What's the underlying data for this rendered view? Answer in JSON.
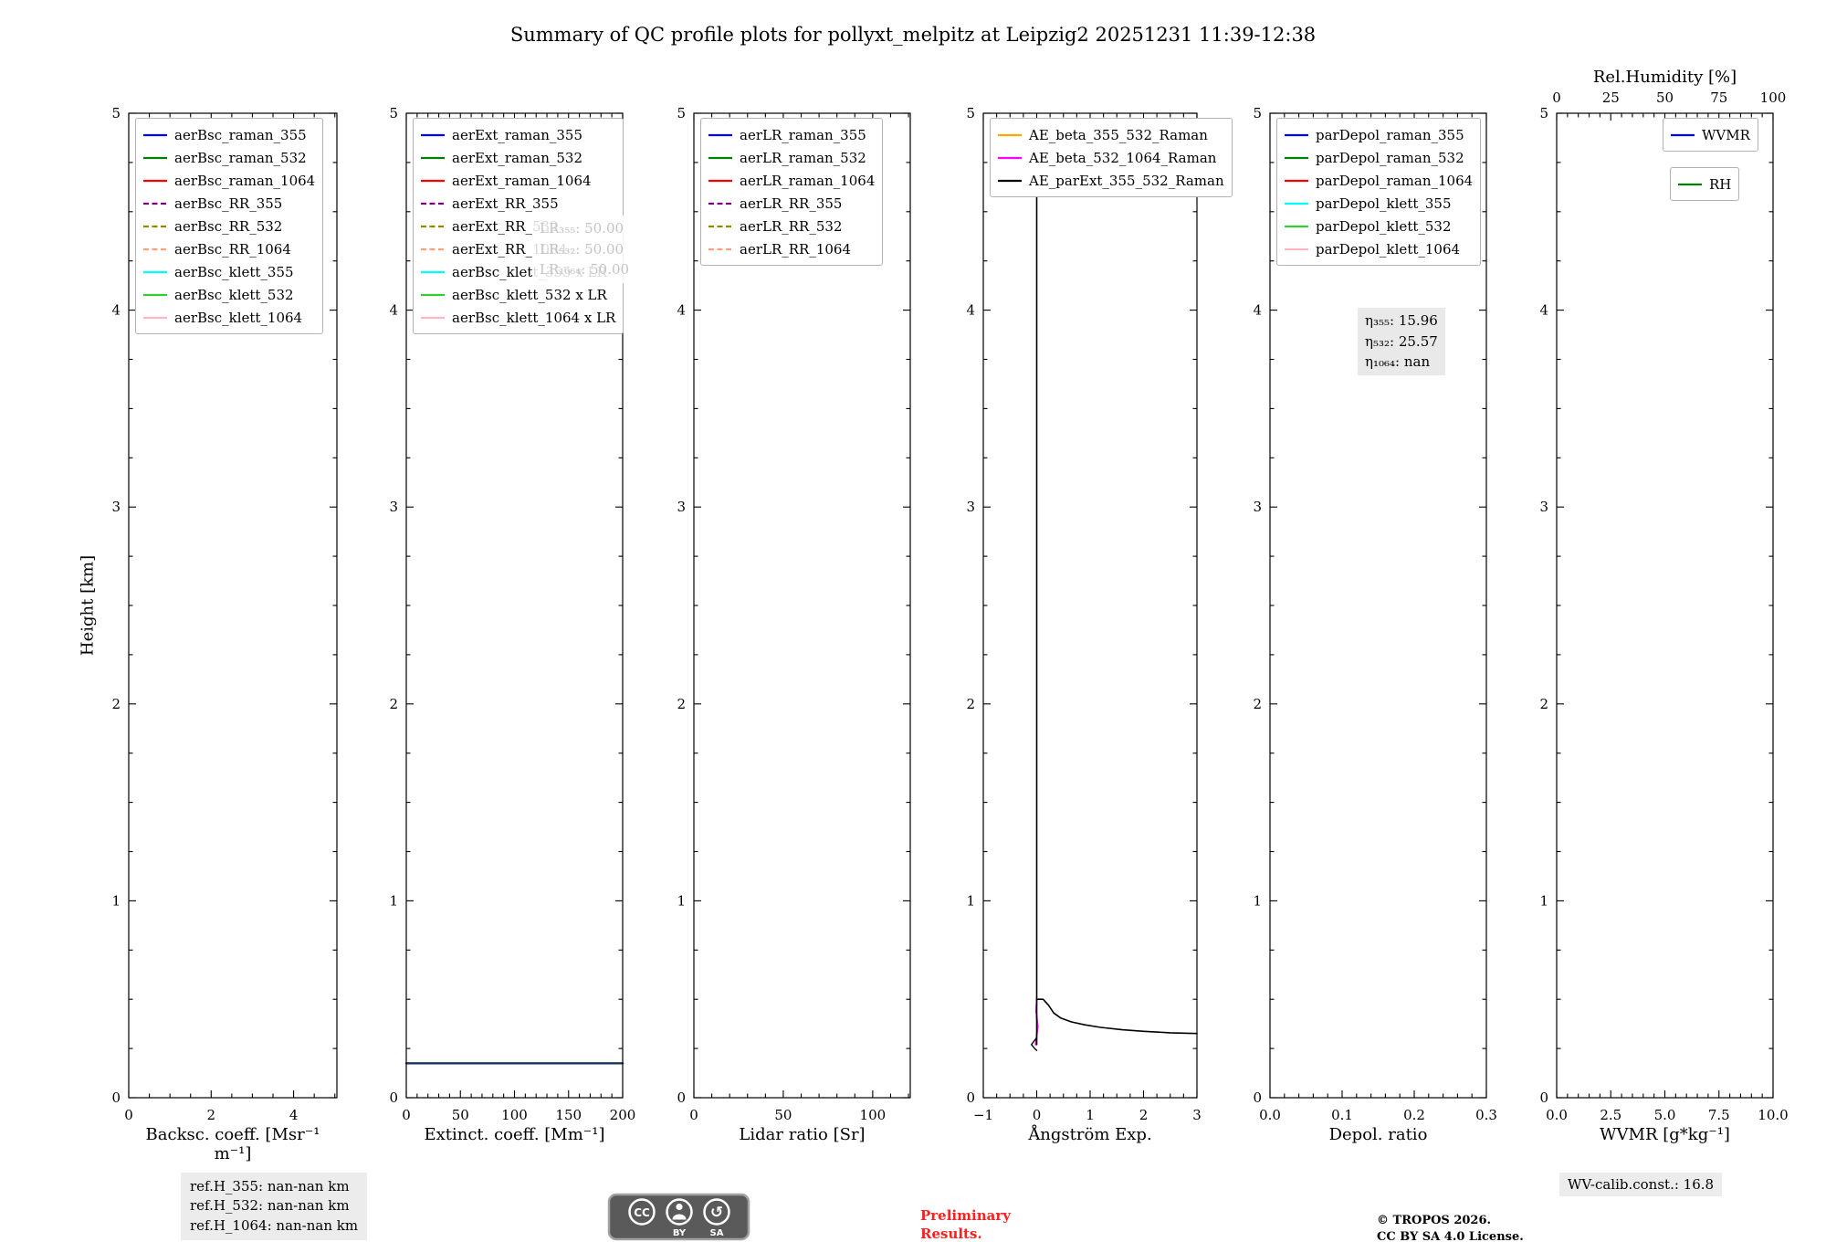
{
  "title": "Summary of QC profile plots for pollyxt_melpitz at Leipzig2 20251231 11:39-12:38",
  "ylabel": "Height [km]",
  "chart_data": [
    {
      "type": "line",
      "xlabel": "Backsc. coeff. [Msr⁻¹ m⁻¹]",
      "xlim": [
        0,
        5.05
      ],
      "xticks": [
        0,
        2,
        4
      ],
      "xtick_labels": [
        "0",
        "2",
        "4"
      ],
      "xminor": 0.5,
      "ylim": [
        0,
        5
      ],
      "yticks": [
        0,
        1,
        2,
        3,
        4,
        5
      ],
      "ytick_labels": [
        "0",
        "1",
        "2",
        "3",
        "4",
        "5"
      ],
      "yminor": 0.25,
      "legend": {
        "items": [
          {
            "label": "aerBsc_raman_355",
            "color": "#0000ff",
            "dash": "solid"
          },
          {
            "label": "aerBsc_raman_532",
            "color": "#008000",
            "dash": "solid"
          },
          {
            "label": "aerBsc_raman_1064",
            "color": "#ff0000",
            "dash": "solid"
          },
          {
            "label": "aerBsc_RR_355",
            "color": "#800080",
            "dash": "dashed"
          },
          {
            "label": "aerBsc_RR_532",
            "color": "#8b8b00",
            "dash": "dashed"
          },
          {
            "label": "aerBsc_RR_1064",
            "color": "#ffa07a",
            "dash": "dashed"
          },
          {
            "label": "aerBsc_klett_355",
            "color": "#00ffff",
            "dash": "solid"
          },
          {
            "label": "aerBsc_klett_532",
            "color": "#32cd32",
            "dash": "solid"
          },
          {
            "label": "aerBsc_klett_1064",
            "color": "#ffb6c1",
            "dash": "solid"
          }
        ]
      },
      "lines": []
    },
    {
      "type": "line",
      "xlabel": "Extinct. coeff. [Mm⁻¹]",
      "xlim": [
        0,
        200
      ],
      "xticks": [
        0,
        50,
        100,
        150,
        200
      ],
      "xtick_labels": [
        "0",
        "50",
        "100",
        "150",
        "200"
      ],
      "xminor": 10,
      "ylim": [
        0,
        5
      ],
      "yticks": [
        0,
        1,
        2,
        3,
        4,
        5
      ],
      "ytick_labels": [
        "0",
        "1",
        "2",
        "3",
        "4",
        "5"
      ],
      "yminor": 0.25,
      "legend": {
        "items": [
          {
            "label": "aerExt_raman_355",
            "color": "#0000ff",
            "dash": "solid"
          },
          {
            "label": "aerExt_raman_532",
            "color": "#008000",
            "dash": "solid"
          },
          {
            "label": "aerExt_raman_1064",
            "color": "#ff0000",
            "dash": "solid"
          },
          {
            "label": "aerExt_RR_355",
            "color": "#800080",
            "dash": "dashed"
          },
          {
            "label": "aerExt_RR_532",
            "color": "#8b8b00",
            "dash": "dashed"
          },
          {
            "label": "aerExt_RR_1064",
            "color": "#ffa07a",
            "dash": "dashed"
          },
          {
            "label": "aerBsc_klett_355 x LR",
            "color": "#00ffff",
            "dash": "solid"
          },
          {
            "label": "aerBsc_klett_532 x LR",
            "color": "#32cd32",
            "dash": "solid"
          },
          {
            "label": "aerBsc_klett_1064 x LR",
            "color": "#ffb6c1",
            "dash": "solid"
          }
        ]
      },
      "annotations": [
        {
          "name": "lidar-ratio-annotation",
          "lines": [
            "LR₃₅₅: 50.00",
            "LR₅₃₂: 50.00",
            "LR₁₀₆₄: 50.00"
          ],
          "color": "#c4c4c4",
          "bg": "rgba(255,255,255,0.85)"
        }
      ],
      "lines": [
        {
          "name": "extinction-profile-line",
          "color": "#16365c",
          "width": 2.4,
          "points": [
            [
              0,
              0.175
            ],
            [
              200,
              0.175
            ]
          ]
        }
      ]
    },
    {
      "type": "line",
      "xlabel": "Lidar ratio [Sr]",
      "xlim": [
        0,
        121
      ],
      "xticks": [
        0,
        50,
        100
      ],
      "xtick_labels": [
        "0",
        "50",
        "100"
      ],
      "xminor": 10,
      "ylim": [
        0,
        5
      ],
      "yticks": [
        0,
        1,
        2,
        3,
        4,
        5
      ],
      "ytick_labels": [
        "0",
        "1",
        "2",
        "3",
        "4",
        "5"
      ],
      "yminor": 0.25,
      "legend": {
        "items": [
          {
            "label": "aerLR_raman_355",
            "color": "#0000ff",
            "dash": "solid"
          },
          {
            "label": "aerLR_raman_532",
            "color": "#008000",
            "dash": "solid"
          },
          {
            "label": "aerLR_raman_1064",
            "color": "#ff0000",
            "dash": "solid"
          },
          {
            "label": "aerLR_RR_355",
            "color": "#800080",
            "dash": "dashed"
          },
          {
            "label": "aerLR_RR_532",
            "color": "#8b8b00",
            "dash": "dashed"
          },
          {
            "label": "aerLR_RR_1064",
            "color": "#ffa07a",
            "dash": "dashed"
          }
        ]
      },
      "lines": []
    },
    {
      "type": "line",
      "xlabel": "Ångström Exp.",
      "xlim": [
        -1,
        3
      ],
      "xticks": [
        -1,
        0,
        1,
        2,
        3
      ],
      "xtick_labels": [
        "−1",
        "0",
        "1",
        "2",
        "3"
      ],
      "xminor": 0.25,
      "ylim": [
        0,
        5
      ],
      "yticks": [
        0,
        1,
        2,
        3,
        4,
        5
      ],
      "ytick_labels": [
        "0",
        "1",
        "2",
        "3",
        "4",
        "5"
      ],
      "yminor": 0.25,
      "legend": {
        "items": [
          {
            "label": "AE_beta_355_532_Raman",
            "color": "#ffa500",
            "dash": "solid"
          },
          {
            "label": "AE_beta_532_1064_Raman",
            "color": "#ff00ff",
            "dash": "solid"
          },
          {
            "label": "AE_parExt_355_532_Raman",
            "color": "#000000",
            "dash": "solid"
          }
        ]
      },
      "lines": [
        {
          "name": "AE_beta_532_1064_Raman",
          "color": "#ff00ff",
          "width": 1.8,
          "points": [
            [
              -0.02,
              0.27
            ],
            [
              0.02,
              0.36
            ],
            [
              -0.01,
              0.44
            ],
            [
              0,
              0.5
            ]
          ]
        },
        {
          "name": "AE_parExt_355_532_Raman-vertical",
          "color": "#000000",
          "width": 1.6,
          "points": [
            [
              0,
              0.27
            ],
            [
              0,
              4.6
            ]
          ]
        },
        {
          "name": "AE_parExt_355_532_Raman-curve",
          "color": "#000000",
          "width": 1.6,
          "points": [
            [
              0,
              0.5
            ],
            [
              0.12,
              0.5
            ],
            [
              0.22,
              0.47
            ],
            [
              0.32,
              0.43
            ],
            [
              0.45,
              0.405
            ],
            [
              0.65,
              0.385
            ],
            [
              0.9,
              0.37
            ],
            [
              1.2,
              0.357
            ],
            [
              1.6,
              0.345
            ],
            [
              2.0,
              0.337
            ],
            [
              2.5,
              0.33
            ],
            [
              3.0,
              0.326
            ]
          ]
        },
        {
          "name": "AE_parExt_355_532_Raman-blip",
          "color": "#000000",
          "width": 1.4,
          "points": [
            [
              0,
              0.305
            ],
            [
              -0.1,
              0.27
            ],
            [
              -0.04,
              0.25
            ],
            [
              0,
              0.24
            ]
          ]
        }
      ]
    },
    {
      "type": "line",
      "xlabel": "Depol. ratio",
      "xlim": [
        0,
        0.3
      ],
      "xticks": [
        0,
        0.1,
        0.2,
        0.3
      ],
      "xtick_labels": [
        "0.0",
        "0.1",
        "0.2",
        "0.3"
      ],
      "xminor": 0.02,
      "ylim": [
        0,
        5
      ],
      "yticks": [
        0,
        1,
        2,
        3,
        4,
        5
      ],
      "ytick_labels": [
        "0",
        "1",
        "2",
        "3",
        "4",
        "5"
      ],
      "yminor": 0.25,
      "legend": {
        "items": [
          {
            "label": "parDepol_raman_355",
            "color": "#0000ff",
            "dash": "solid"
          },
          {
            "label": "parDepol_raman_532",
            "color": "#008000",
            "dash": "solid"
          },
          {
            "label": "parDepol_raman_1064",
            "color": "#ff0000",
            "dash": "solid"
          },
          {
            "label": "parDepol_klett_355",
            "color": "#00ffff",
            "dash": "solid"
          },
          {
            "label": "parDepol_klett_532",
            "color": "#32cd32",
            "dash": "solid"
          },
          {
            "label": "parDepol_klett_1064",
            "color": "#ffb6c1",
            "dash": "solid"
          }
        ]
      },
      "annotations": [
        {
          "name": "eta-calibration-annotation",
          "lines": [
            "η₃₅₅: 15.96",
            "η₅₃₂: 25.57",
            "η₁₀₆₄: nan"
          ],
          "color": "#000000",
          "bg": "#e9e9e9"
        }
      ],
      "lines": []
    },
    {
      "type": "line",
      "xlabel": "WVMR [g*kg⁻¹]",
      "xlim": [
        0,
        10
      ],
      "xticks": [
        0,
        2.5,
        5,
        7.5,
        10
      ],
      "xtick_labels": [
        "0.0",
        "2.5",
        "5.0",
        "7.5",
        "10.0"
      ],
      "xminor": 0.5,
      "ylim": [
        0,
        5
      ],
      "yticks": [
        0,
        1,
        2,
        3,
        4,
        5
      ],
      "ytick_labels": [
        "0",
        "1",
        "2",
        "3",
        "4",
        "5"
      ],
      "yminor": 0.25,
      "top": {
        "title": "Rel.Humidity [%]",
        "lim": [
          0,
          100
        ],
        "ticks": [
          0,
          25,
          50,
          75,
          100
        ],
        "tick_labels": [
          "0",
          "25",
          "50",
          "75",
          "100"
        ],
        "minor": 5
      },
      "legends": [
        {
          "items": [
            {
              "label": "WVMR",
              "color": "#0000ff",
              "dash": "solid"
            }
          ]
        },
        {
          "items": [
            {
              "label": "RH",
              "color": "#008000",
              "dash": "solid"
            }
          ]
        }
      ],
      "lines": []
    }
  ],
  "footer": {
    "ref_h": [
      "ref.H_355: nan-nan km",
      "ref.H_532: nan-nan km",
      "ref.H_1064: nan-nan km"
    ],
    "preliminary": [
      "Preliminary",
      "Results."
    ],
    "copyright": [
      "© TROPOS 2026.",
      "CC BY SA 4.0 License."
    ],
    "wv_calib": "WV-calib.const.: 16.8",
    "license_badge": {
      "cc": "CC",
      "by": "BY",
      "sa": "SA"
    }
  }
}
